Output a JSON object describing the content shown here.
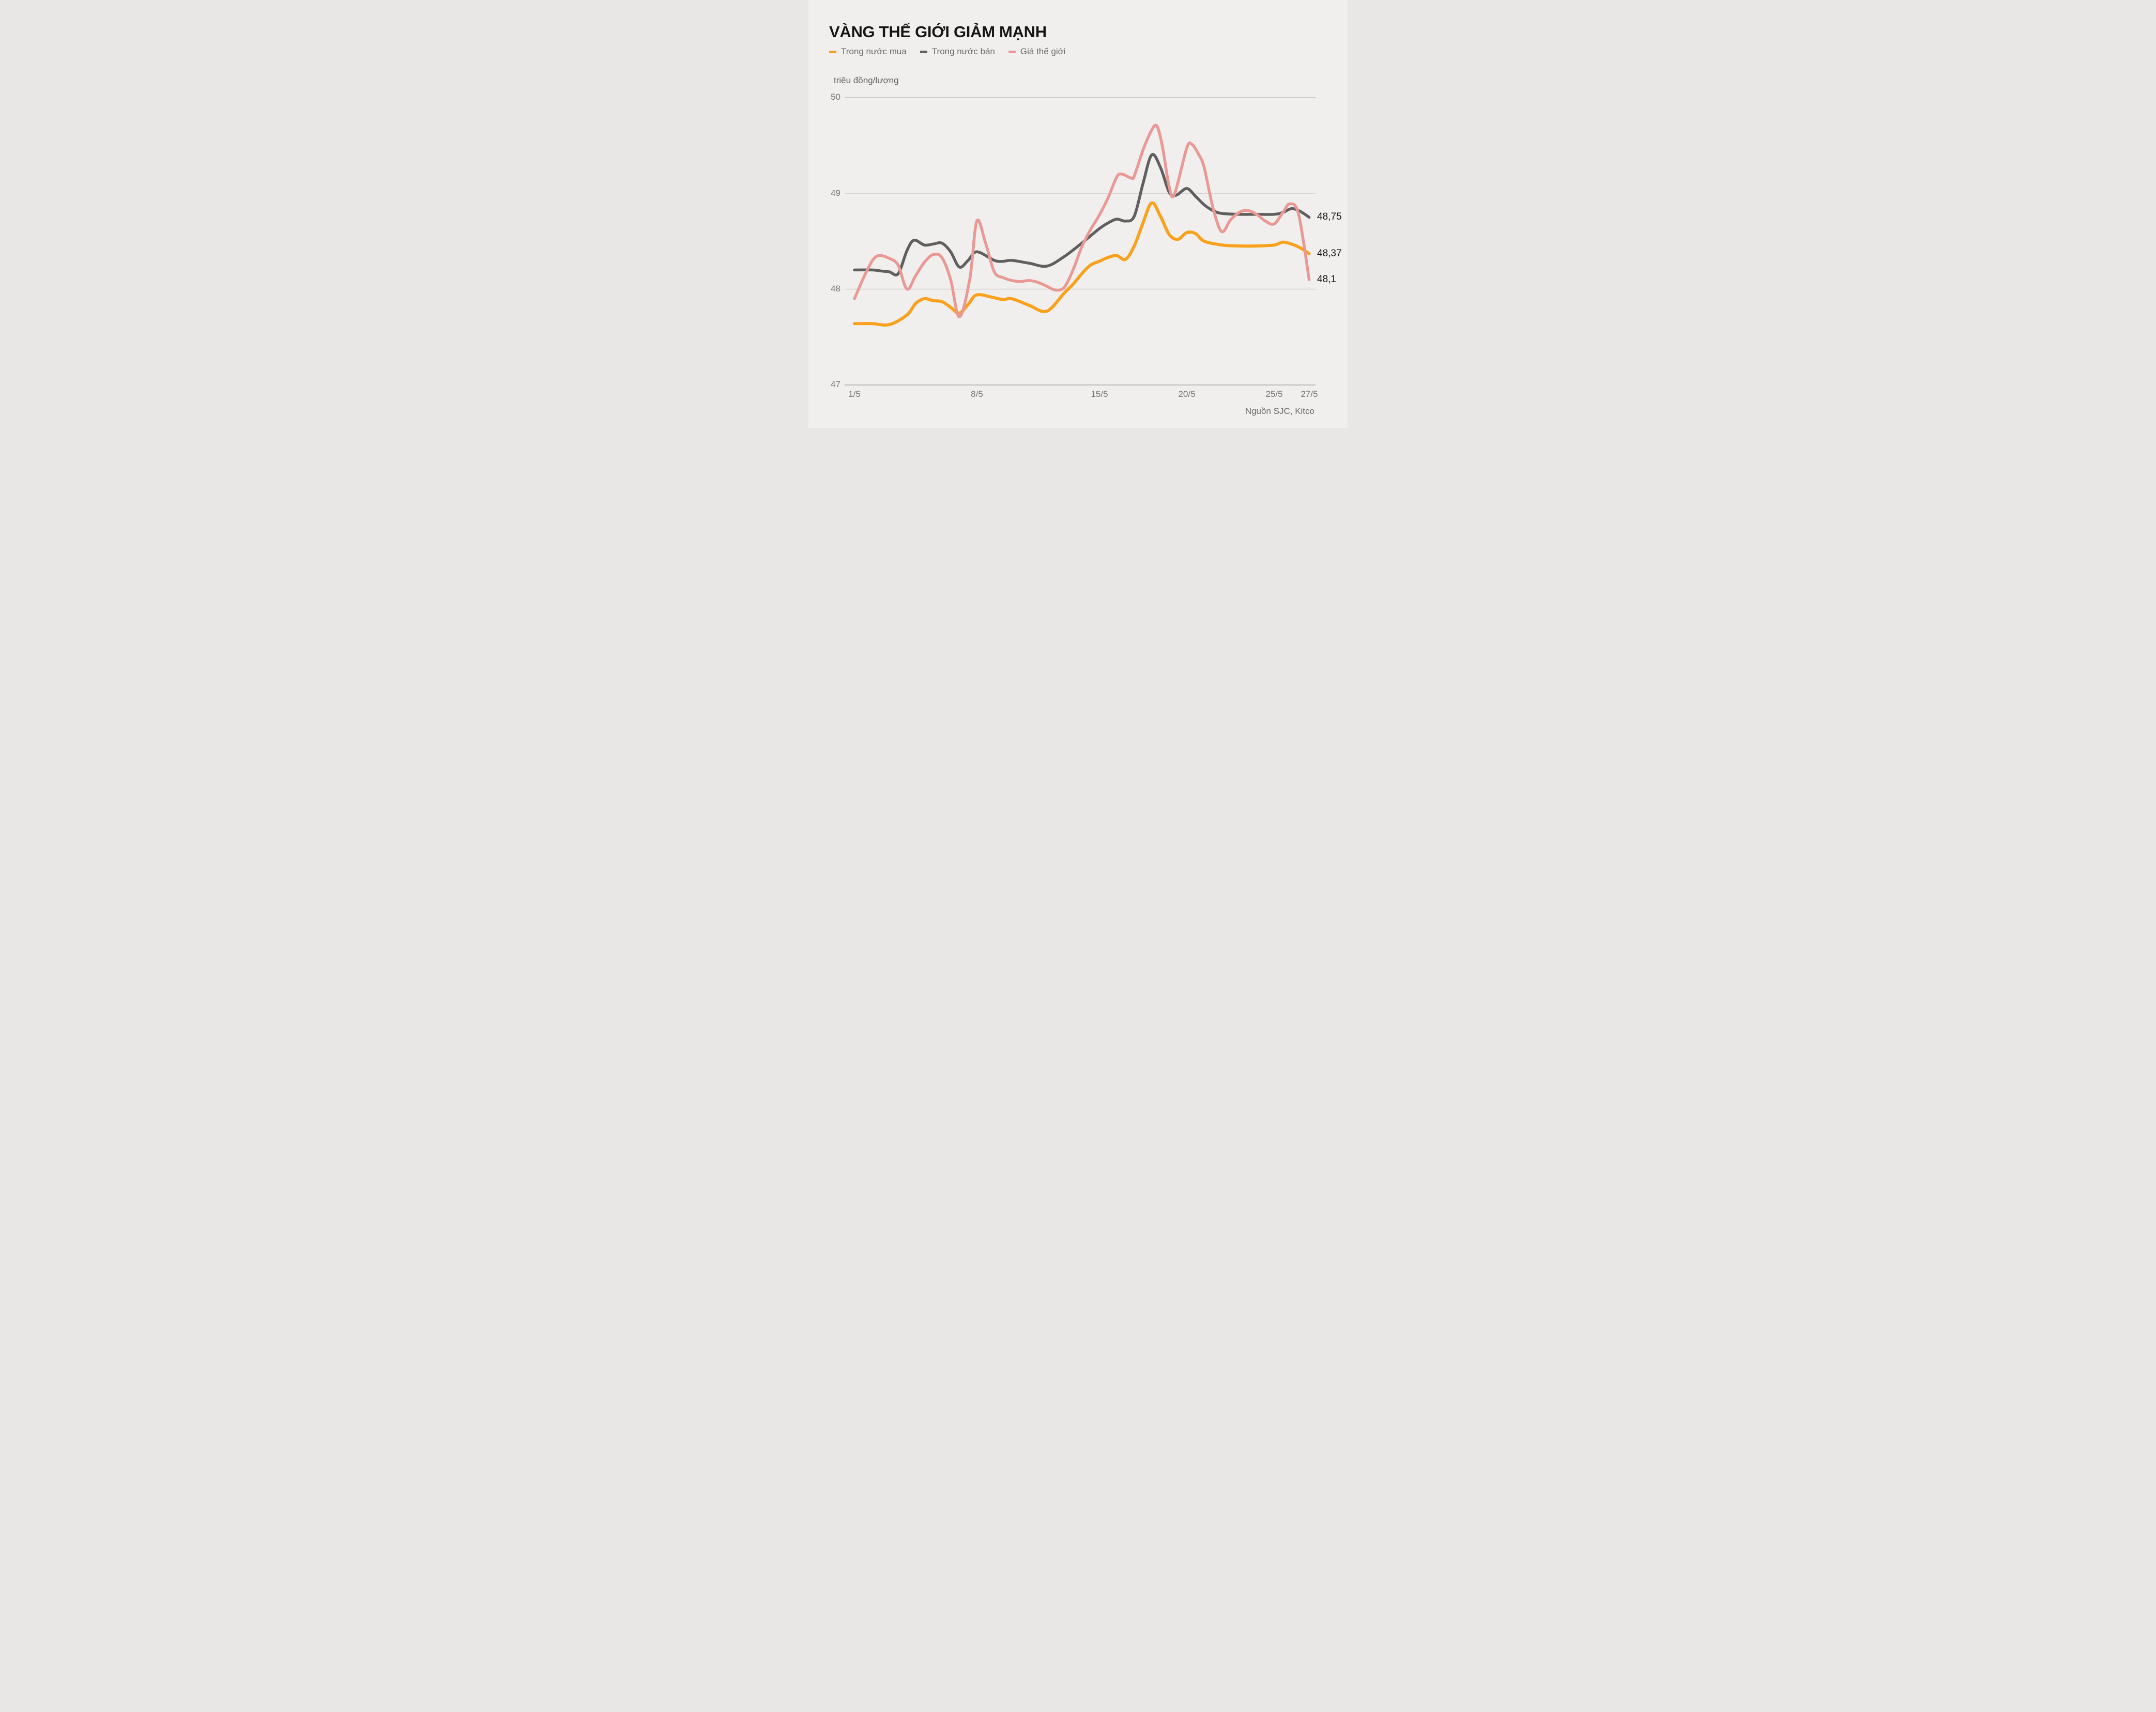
{
  "header": {
    "title": "VÀNG THẾ GIỚI GIẢM MẠNH"
  },
  "unit_label": "triệu đồng/lượng",
  "source": "Nguồn SJC, Kitco",
  "colors": {
    "background": "#f0efed",
    "gridline": "#c7c6c4",
    "gridline_bottom": "#b5b4b2",
    "buy_line": "#f9a11c",
    "sell_line": "#5f5f5f",
    "world_line": "#e99894"
  },
  "chart_data": {
    "type": "line",
    "title": "VÀNG THẾ GIỚI GIẢM MẠNH",
    "ylabel": "triệu đồng/lượng",
    "xlabel": "",
    "grid": true,
    "legend_position": "top-left",
    "x_axis": {
      "tick_labels": [
        "1/5",
        "8/5",
        "15/5",
        "20/5",
        "25/5",
        "27/5"
      ],
      "tick_days": [
        1,
        8,
        15,
        20,
        25,
        27
      ],
      "domain_days": [
        1,
        27
      ]
    },
    "y_axis": {
      "tick_labels": [
        "50",
        "49",
        "48",
        "47"
      ],
      "ticks": [
        50,
        49,
        48,
        47
      ],
      "ylim": [
        47,
        50
      ]
    },
    "series": [
      {
        "name": "Trong nước mua",
        "color": "#f9a11c",
        "end_label": "48,37",
        "end_value": 48.37,
        "points": [
          [
            1,
            47.64
          ],
          [
            2,
            47.64
          ],
          [
            3,
            47.63
          ],
          [
            4,
            47.73
          ],
          [
            4.5,
            47.85
          ],
          [
            5,
            47.9
          ],
          [
            5.5,
            47.88
          ],
          [
            6,
            47.87
          ],
          [
            6.5,
            47.81
          ],
          [
            7,
            47.75
          ],
          [
            7.5,
            47.84
          ],
          [
            8,
            47.94
          ],
          [
            9,
            47.91
          ],
          [
            9.5,
            47.89
          ],
          [
            10,
            47.9
          ],
          [
            11,
            47.83
          ],
          [
            12,
            47.77
          ],
          [
            13,
            47.96
          ],
          [
            13.5,
            48.05
          ],
          [
            14,
            48.16
          ],
          [
            14.5,
            48.25
          ],
          [
            15,
            48.29
          ],
          [
            15.5,
            48.33
          ],
          [
            16,
            48.35
          ],
          [
            16.5,
            48.31
          ],
          [
            17,
            48.45
          ],
          [
            17.5,
            48.69
          ],
          [
            18,
            48.9
          ],
          [
            18.5,
            48.76
          ],
          [
            19,
            48.57
          ],
          [
            19.5,
            48.52
          ],
          [
            20,
            48.59
          ],
          [
            20.5,
            48.58
          ],
          [
            21,
            48.5
          ],
          [
            22,
            48.46
          ],
          [
            23,
            48.45
          ],
          [
            24,
            48.45
          ],
          [
            25,
            48.46
          ],
          [
            25.5,
            48.49
          ],
          [
            26,
            48.47
          ],
          [
            26.5,
            48.43
          ],
          [
            27,
            48.37
          ]
        ]
      },
      {
        "name": "Trong nước bán",
        "color": "#5f5f5f",
        "end_label": "48,75",
        "end_value": 48.75,
        "points": [
          [
            1,
            48.2
          ],
          [
            2,
            48.2
          ],
          [
            2.5,
            48.19
          ],
          [
            3,
            48.18
          ],
          [
            3.5,
            48.16
          ],
          [
            4,
            48.4
          ],
          [
            4.4,
            48.51
          ],
          [
            5,
            48.46
          ],
          [
            5.5,
            48.47
          ],
          [
            6,
            48.48
          ],
          [
            6.5,
            48.39
          ],
          [
            7,
            48.23
          ],
          [
            7.5,
            48.3
          ],
          [
            8,
            48.39
          ],
          [
            9,
            48.3
          ],
          [
            9.5,
            48.29
          ],
          [
            10,
            48.3
          ],
          [
            11,
            48.27
          ],
          [
            12,
            48.24
          ],
          [
            13,
            48.34
          ],
          [
            14,
            48.48
          ],
          [
            15,
            48.63
          ],
          [
            15.5,
            48.69
          ],
          [
            16,
            48.73
          ],
          [
            16.5,
            48.71
          ],
          [
            17,
            48.76
          ],
          [
            17.5,
            49.1
          ],
          [
            18,
            49.4
          ],
          [
            18.5,
            49.27
          ],
          [
            19,
            49.01
          ],
          [
            19.4,
            48.98
          ],
          [
            20,
            49.05
          ],
          [
            20.5,
            48.97
          ],
          [
            21,
            48.88
          ],
          [
            21.5,
            48.82
          ],
          [
            22,
            48.79
          ],
          [
            23,
            48.78
          ],
          [
            24,
            48.78
          ],
          [
            25,
            48.78
          ],
          [
            25.5,
            48.8
          ],
          [
            26,
            48.84
          ],
          [
            26.5,
            48.81
          ],
          [
            27,
            48.75
          ]
        ]
      },
      {
        "name": "Giá thế giới",
        "color": "#e99894",
        "end_label": "48,1",
        "end_value": 48.1,
        "points": [
          [
            1,
            47.9
          ],
          [
            1.5,
            48.11
          ],
          [
            2,
            48.29
          ],
          [
            2.4,
            48.35
          ],
          [
            3,
            48.32
          ],
          [
            3.5,
            48.25
          ],
          [
            4,
            48.0
          ],
          [
            4.5,
            48.14
          ],
          [
            5,
            48.28
          ],
          [
            5.5,
            48.36
          ],
          [
            6,
            48.33
          ],
          [
            6.5,
            48.1
          ],
          [
            7,
            47.71
          ],
          [
            7.6,
            48.11
          ],
          [
            8,
            48.71
          ],
          [
            8.5,
            48.48
          ],
          [
            9,
            48.18
          ],
          [
            9.5,
            48.12
          ],
          [
            10,
            48.09
          ],
          [
            10.5,
            48.08
          ],
          [
            11,
            48.09
          ],
          [
            11.5,
            48.07
          ],
          [
            12,
            48.03
          ],
          [
            12.5,
            47.99
          ],
          [
            13,
            48.02
          ],
          [
            13.5,
            48.2
          ],
          [
            14,
            48.44
          ],
          [
            14.5,
            48.62
          ],
          [
            15,
            48.77
          ],
          [
            15.5,
            48.95
          ],
          [
            16,
            49.17
          ],
          [
            16.3,
            49.2
          ],
          [
            16.8,
            49.16
          ],
          [
            17,
            49.18
          ],
          [
            17.5,
            49.45
          ],
          [
            18,
            49.66
          ],
          [
            18.3,
            49.7
          ],
          [
            18.6,
            49.5
          ],
          [
            19,
            49.07
          ],
          [
            19.3,
            48.99
          ],
          [
            20,
            49.47
          ],
          [
            20.3,
            49.51
          ],
          [
            20.7,
            49.4
          ],
          [
            21,
            49.27
          ],
          [
            21.5,
            48.85
          ],
          [
            22,
            48.6
          ],
          [
            22.5,
            48.72
          ],
          [
            23,
            48.8
          ],
          [
            23.5,
            48.82
          ],
          [
            24,
            48.78
          ],
          [
            24.5,
            48.71
          ],
          [
            25,
            48.68
          ],
          [
            25.5,
            48.8
          ],
          [
            25.9,
            48.89
          ],
          [
            26.4,
            48.78
          ],
          [
            27,
            48.1
          ]
        ]
      }
    ],
    "end_labels": [
      {
        "text": "48,75",
        "value": 48.75,
        "series": "Trong nước bán"
      },
      {
        "text": "48,37",
        "value": 48.37,
        "series": "Trong nước mua"
      },
      {
        "text": "48,1",
        "value": 48.1,
        "series": "Giá thế giới"
      }
    ]
  }
}
